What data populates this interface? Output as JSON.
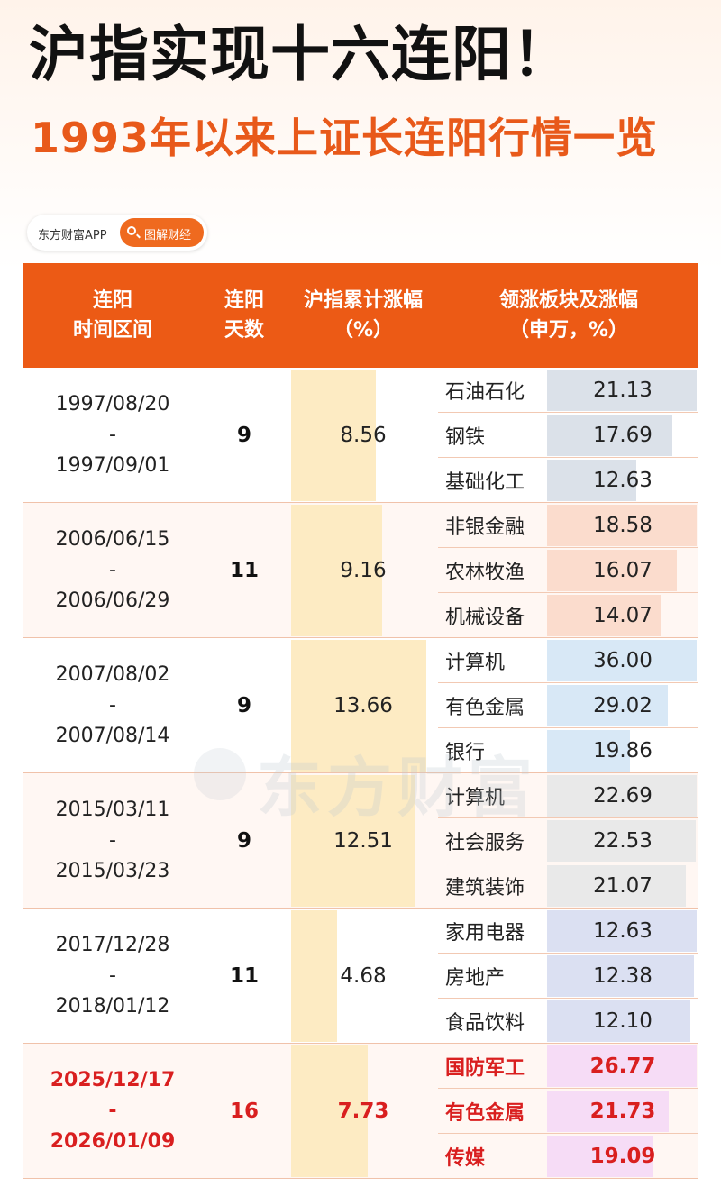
{
  "title": "沪指实现十六连阳！",
  "subtitle": "1993年以来上证长连阳行情一览",
  "brand": {
    "name": "东方财富APP",
    "tag": "图解财经"
  },
  "watermark": "东方财富",
  "colors": {
    "header": "#ec5a15",
    "accent": "#e8591a",
    "highlight_text": "#d91f1f",
    "gain_bar": "#fdebc3"
  },
  "chart_data": {
    "type": "table",
    "columns": [
      [
        "连阳",
        "时间区间"
      ],
      [
        "连阳",
        "天数"
      ],
      [
        "沪指累计涨幅",
        "（%）"
      ],
      [
        "领涨板块及涨幅",
        "（申万，%）"
      ]
    ],
    "rows": [
      {
        "start": "1997/08/20",
        "sep": "-",
        "end": "1997/09/01",
        "days": "9",
        "gain": 8.56,
        "gain_label": "8.56",
        "sector_color": "#dbe1e9",
        "sectors": [
          {
            "name": "石油石化",
            "value": 21.13,
            "label": "21.13"
          },
          {
            "name": "钢铁",
            "value": 17.69,
            "label": "17.69"
          },
          {
            "name": "基础化工",
            "value": 12.63,
            "label": "12.63"
          }
        ]
      },
      {
        "start": "2006/06/15",
        "sep": "-",
        "end": "2006/06/29",
        "days": "11",
        "gain": 9.16,
        "gain_label": "9.16",
        "sector_color": "#fbdccd",
        "sectors": [
          {
            "name": "非银金融",
            "value": 18.58,
            "label": "18.58"
          },
          {
            "name": "农林牧渔",
            "value": 16.07,
            "label": "16.07"
          },
          {
            "name": "机械设备",
            "value": 14.07,
            "label": "14.07"
          }
        ]
      },
      {
        "start": "2007/08/02",
        "sep": "-",
        "end": "2007/08/14",
        "days": "9",
        "gain": 13.66,
        "gain_label": "13.66",
        "sector_color": "#d8e8f6",
        "sectors": [
          {
            "name": "计算机",
            "value": 36.0,
            "label": "36.00"
          },
          {
            "name": "有色金属",
            "value": 29.02,
            "label": "29.02"
          },
          {
            "name": "银行",
            "value": 19.86,
            "label": "19.86"
          }
        ]
      },
      {
        "start": "2015/03/11",
        "sep": "-",
        "end": "2015/03/23",
        "days": "9",
        "gain": 12.51,
        "gain_label": "12.51",
        "sector_color": "#e9e9e9",
        "sectors": [
          {
            "name": "计算机",
            "value": 22.69,
            "label": "22.69"
          },
          {
            "name": "社会服务",
            "value": 22.53,
            "label": "22.53"
          },
          {
            "name": "建筑装饰",
            "value": 21.07,
            "label": "21.07"
          }
        ]
      },
      {
        "start": "2017/12/28",
        "sep": "-",
        "end": "2018/01/12",
        "days": "11",
        "gain": 4.68,
        "gain_label": "4.68",
        "sector_color": "#dbe0f2",
        "sectors": [
          {
            "name": "家用电器",
            "value": 12.63,
            "label": "12.63"
          },
          {
            "name": "房地产",
            "value": 12.38,
            "label": "12.38"
          },
          {
            "name": "食品饮料",
            "value": 12.1,
            "label": "12.10"
          }
        ]
      },
      {
        "start": "2025/12/17",
        "sep": "-",
        "end": "2026/01/09",
        "days": "16",
        "gain": 7.73,
        "gain_label": "7.73",
        "highlight": true,
        "sector_color": "#f6dcf6",
        "sectors": [
          {
            "name": "国防军工",
            "value": 26.77,
            "label": "26.77"
          },
          {
            "name": "有色金属",
            "value": 21.73,
            "label": "21.73"
          },
          {
            "name": "传媒",
            "value": 19.09,
            "label": "19.09"
          }
        ]
      }
    ]
  }
}
